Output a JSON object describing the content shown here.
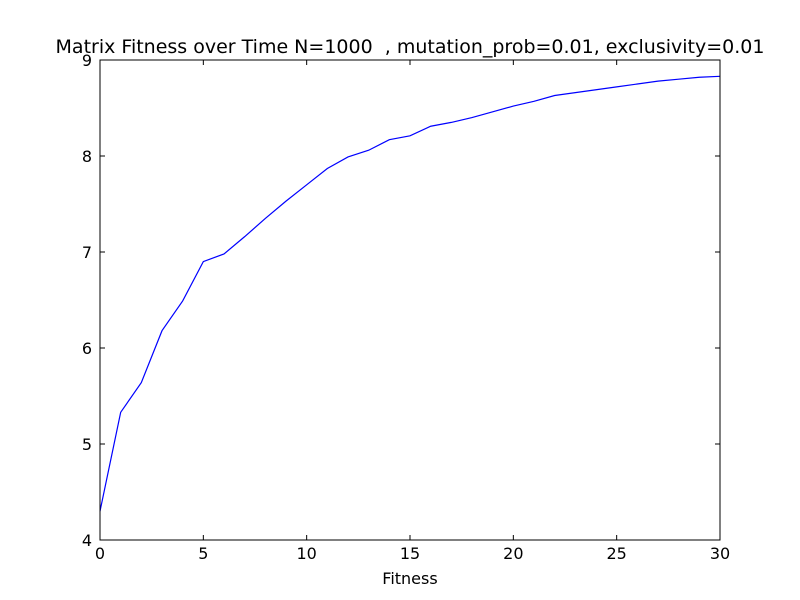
{
  "chart_data": {
    "type": "line",
    "title": "Matrix Fitness over Time N=1000  , mutation_prob=0.01, exclusivity=0.01",
    "xlabel": "Fitness",
    "ylabel": "",
    "xlim": [
      0,
      30
    ],
    "ylim": [
      4,
      9
    ],
    "xticks": [
      0,
      5,
      10,
      15,
      20,
      25,
      30
    ],
    "yticks": [
      4,
      5,
      6,
      7,
      8,
      9
    ],
    "xtick_labels": [
      "0",
      "5",
      "10",
      "15",
      "20",
      "25",
      "30"
    ],
    "ytick_labels": [
      "4",
      "5",
      "6",
      "7",
      "8",
      "9"
    ],
    "grid": false,
    "series": [
      {
        "color": "#0000ff",
        "x": [
          0,
          1,
          2,
          3,
          4,
          5,
          6,
          7,
          8,
          9,
          10,
          11,
          12,
          13,
          14,
          15,
          16,
          17,
          18,
          19,
          20,
          21,
          22,
          23,
          24,
          25,
          26,
          27,
          28,
          29,
          30
        ],
        "y": [
          4.3,
          5.33,
          5.64,
          6.18,
          6.49,
          6.9,
          6.98,
          7.16,
          7.35,
          7.53,
          7.7,
          7.87,
          7.99,
          8.06,
          8.17,
          8.21,
          8.31,
          8.35,
          8.4,
          8.46,
          8.52,
          8.57,
          8.63,
          8.66,
          8.69,
          8.72,
          8.75,
          8.78,
          8.8,
          8.82,
          8.83
        ]
      }
    ]
  }
}
